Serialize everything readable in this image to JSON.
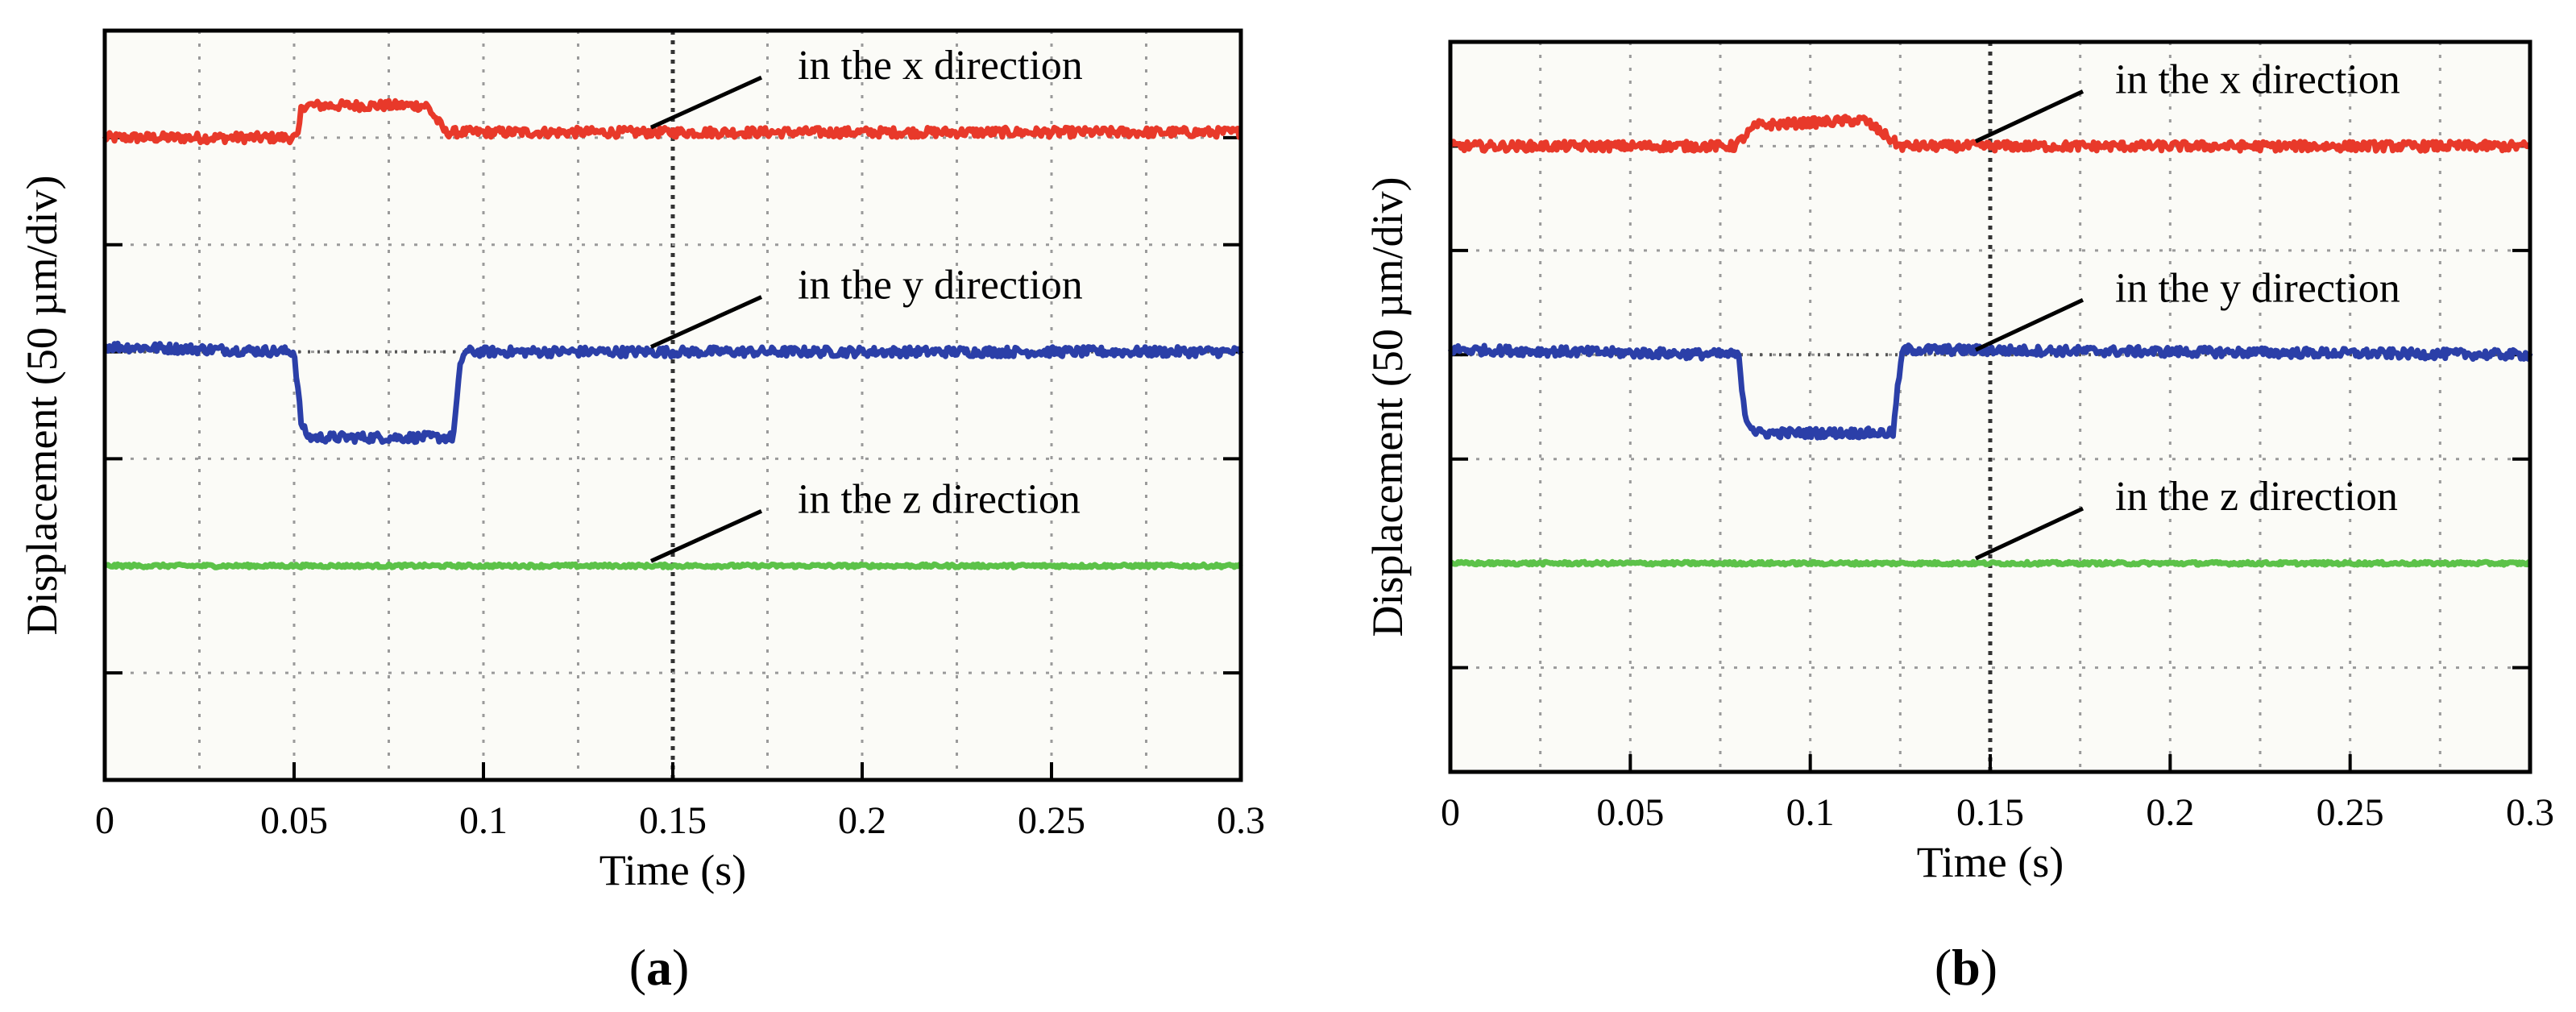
{
  "chart_data": [
    {
      "type": "line",
      "panel_label": "a",
      "xlabel": "Time (s)",
      "ylabel": "Displacement  (50 µm/div)",
      "xlim": [
        0,
        0.3
      ],
      "ylim": [
        0,
        7
      ],
      "x_tick_labels": [
        "0",
        "0.05",
        "0.1",
        "0.15",
        "0.2",
        "0.25",
        "0.3"
      ],
      "x_ticks": [
        0,
        0.05,
        0.1,
        0.15,
        0.2,
        0.25,
        0.3
      ],
      "grid": true,
      "series": [
        {
          "name": "in the x direction",
          "color": "#e8392a",
          "points": [
            [
              0,
              6.0
            ],
            [
              0.051,
              6.0
            ],
            [
              0.052,
              6.3
            ],
            [
              0.085,
              6.3
            ],
            [
              0.09,
              6.05
            ],
            [
              0.3,
              6.05
            ]
          ]
        },
        {
          "name": "in the y direction",
          "color": "#2b3fa8",
          "points": [
            [
              0,
              4.05
            ],
            [
              0.05,
              4.0
            ],
            [
              0.052,
              3.3
            ],
            [
              0.054,
              3.2
            ],
            [
              0.092,
              3.2
            ],
            [
              0.094,
              3.9
            ],
            [
              0.095,
              4.0
            ],
            [
              0.3,
              4.0
            ]
          ]
        },
        {
          "name": "in the z direction",
          "color": "#5cc249",
          "points": [
            [
              0,
              2.0
            ],
            [
              0.3,
              2.0
            ]
          ]
        }
      ]
    },
    {
      "type": "line",
      "panel_label": "b",
      "xlabel": "Time (s)",
      "ylabel": "Displacement  (50 µm/div)",
      "xlim": [
        0,
        0.3
      ],
      "ylim": [
        0,
        7
      ],
      "x_tick_labels": [
        "0",
        "0.05",
        "0.1",
        "0.15",
        "0.2",
        "0.25",
        "0.3"
      ],
      "x_ticks": [
        0,
        0.05,
        0.1,
        0.15,
        0.2,
        0.25,
        0.3
      ],
      "grid": true,
      "series": [
        {
          "name": "in the x direction",
          "color": "#e8392a",
          "points": [
            [
              0,
              6.0
            ],
            [
              0.079,
              6.0
            ],
            [
              0.085,
              6.2
            ],
            [
              0.115,
              6.25
            ],
            [
              0.125,
              6.0
            ],
            [
              0.3,
              6.0
            ]
          ]
        },
        {
          "name": "in the y direction",
          "color": "#2b3fa8",
          "points": [
            [
              0,
              4.05
            ],
            [
              0.08,
              4.0
            ],
            [
              0.082,
              3.4
            ],
            [
              0.085,
              3.25
            ],
            [
              0.123,
              3.25
            ],
            [
              0.125,
              3.9
            ],
            [
              0.126,
              4.05
            ],
            [
              0.3,
              4.0
            ]
          ]
        },
        {
          "name": "in the z direction",
          "color": "#5cc249",
          "points": [
            [
              0,
              2.0
            ],
            [
              0.3,
              2.0
            ]
          ]
        }
      ]
    }
  ]
}
